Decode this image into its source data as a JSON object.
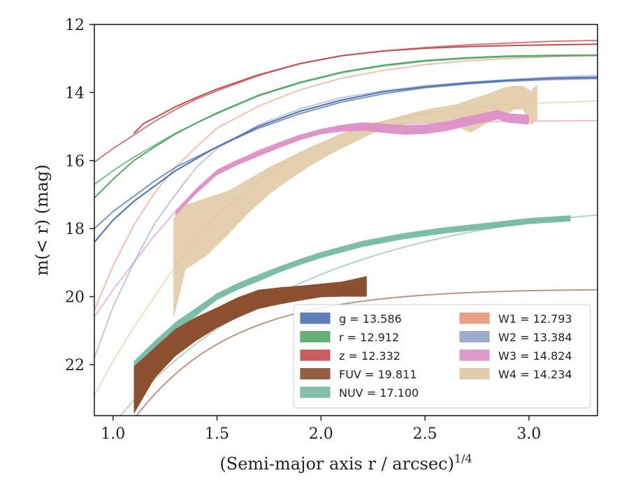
{
  "chart_data": {
    "type": "line",
    "xlabel": "(Semi-major axis r / arcsec)",
    "xlabel_sup": "1/4",
    "ylabel": "m(< r) (mag)",
    "xlim": [
      0.91,
      3.33
    ],
    "ylim": [
      23.5,
      12.0
    ],
    "y_inverted": true,
    "x_ticks": [
      "1.0",
      "1.5",
      "2.0",
      "2.5",
      "3.0"
    ],
    "x_tick_values": [
      1.0,
      1.5,
      2.0,
      2.5,
      3.0
    ],
    "y_ticks": [
      "12",
      "14",
      "16",
      "18",
      "20",
      "22"
    ],
    "y_tick_values": [
      12,
      14,
      16,
      18,
      20,
      22
    ],
    "grid": false,
    "legend_position": "lower-right",
    "legend": [
      {
        "text": "g = 13.586",
        "color": "#4c72b0"
      },
      {
        "text": "r = 12.912",
        "color": "#55a868"
      },
      {
        "text": "z = 12.332",
        "color": "#c44e52"
      },
      {
        "text": "FUV = 19.811",
        "color": "#8c4f2f"
      },
      {
        "text": "NUV = 17.100",
        "color": "#76b8a1"
      },
      {
        "text": "W1 = 12.793",
        "color": "#e8967a"
      },
      {
        "text": "W2 = 13.384",
        "color": "#93a2c8"
      },
      {
        "text": "W3 = 14.824",
        "color": "#dc8fc6"
      },
      {
        "text": "W4 = 14.234",
        "color": "#dfc8a0"
      }
    ],
    "series": [
      {
        "name": "g",
        "color": "#4c72b0",
        "x": [
          0.91,
          1.0,
          1.1,
          1.2,
          1.3,
          1.4,
          1.5,
          1.7,
          1.9,
          2.1,
          2.3,
          2.5,
          2.7,
          2.9,
          3.1,
          3.33
        ],
        "y": [
          18.0,
          17.5,
          17.05,
          16.6,
          16.2,
          15.9,
          15.6,
          15.05,
          14.62,
          14.28,
          14.04,
          13.86,
          13.75,
          13.67,
          13.62,
          13.59
        ],
        "alt_y": [
          18.4,
          17.75,
          17.2,
          16.75,
          16.3,
          15.95,
          15.6,
          15.0,
          14.55,
          14.22,
          13.98,
          13.83,
          13.72,
          13.64,
          13.58,
          13.55
        ]
      },
      {
        "name": "r",
        "color": "#55a868",
        "x": [
          0.91,
          1.0,
          1.1,
          1.2,
          1.3,
          1.4,
          1.5,
          1.7,
          1.9,
          2.1,
          2.3,
          2.5,
          2.7,
          2.9,
          3.1,
          3.33
        ],
        "y": [
          16.7,
          16.3,
          15.9,
          15.55,
          15.2,
          14.9,
          14.62,
          14.1,
          13.72,
          13.42,
          13.22,
          13.08,
          13.0,
          12.95,
          12.93,
          12.91
        ],
        "alt_y": [
          17.1,
          16.55,
          16.0,
          15.6,
          15.22,
          14.9,
          14.6,
          14.08,
          13.7,
          13.4,
          13.2,
          13.06,
          12.98,
          12.93,
          12.91,
          12.9
        ]
      },
      {
        "name": "z",
        "color": "#c44e52",
        "x": [
          0.91,
          1.0,
          1.1,
          1.2,
          1.3,
          1.4,
          1.5,
          1.7,
          1.9,
          2.1,
          2.3,
          2.5,
          2.7,
          2.9,
          3.1,
          3.33
        ],
        "y": [
          16.05,
          15.65,
          15.25,
          14.85,
          14.5,
          14.2,
          13.95,
          13.5,
          13.15,
          12.92,
          12.78,
          12.68,
          12.6,
          12.55,
          12.5,
          12.47
        ],
        "alt_x": [
          1.1,
          1.15,
          1.2,
          1.3,
          1.4,
          1.5,
          1.7,
          1.9,
          2.1,
          2.3,
          2.5,
          2.7,
          2.9,
          3.1,
          3.33
        ],
        "alt_y": [
          15.2,
          14.9,
          14.75,
          14.42,
          14.15,
          13.9,
          13.48,
          13.15,
          12.92,
          12.78,
          12.7,
          12.65,
          12.62,
          12.6,
          12.58
        ]
      },
      {
        "name": "FUV",
        "color": "#8c4f2f",
        "x": [
          1.1,
          1.2,
          1.3,
          1.4,
          1.5,
          1.6,
          1.7,
          1.8,
          1.9,
          2.0,
          2.1,
          2.22
        ],
        "y": [
          22.75,
          21.95,
          21.35,
          20.95,
          20.62,
          20.32,
          20.08,
          19.98,
          19.9,
          19.82,
          19.78,
          19.7
        ],
        "band": [
          0.7,
          0.45,
          0.4,
          0.35,
          0.3,
          0.3,
          0.28,
          0.25,
          0.22,
          0.2,
          0.22,
          0.3
        ]
      },
      {
        "name": "NUV",
        "color": "#76b8a1",
        "x": [
          1.1,
          1.2,
          1.3,
          1.4,
          1.5,
          1.6,
          1.7,
          1.8,
          1.9,
          2.0,
          2.2,
          2.4,
          2.6,
          2.8,
          3.0,
          3.2
        ],
        "y": [
          22.25,
          21.5,
          20.9,
          20.45,
          20.0,
          19.7,
          19.45,
          19.2,
          18.98,
          18.78,
          18.45,
          18.22,
          18.05,
          17.92,
          17.78,
          17.7
        ],
        "band": [
          0.35,
          0.2,
          0.15,
          0.12,
          0.1,
          0.1,
          0.1,
          0.09,
          0.09,
          0.09,
          0.09,
          0.09,
          0.09,
          0.09,
          0.09,
          0.09
        ]
      },
      {
        "name": "W1",
        "color": "#e8967a",
        "x": [
          0.91,
          1.0,
          1.1,
          1.2,
          1.3,
          1.4,
          1.5,
          1.7,
          1.9,
          2.1,
          2.3,
          2.5,
          2.7,
          2.9,
          3.1,
          3.33
        ],
        "y": [
          20.4,
          19.1,
          17.9,
          16.95,
          16.2,
          15.6,
          15.05,
          14.4,
          13.92,
          13.58,
          13.35,
          13.18,
          13.07,
          13.0,
          12.95,
          12.92
        ]
      },
      {
        "name": "W2",
        "color": "#93a2c8",
        "x": [
          0.91,
          1.0,
          1.1,
          1.2,
          1.3,
          1.4,
          1.5,
          1.7,
          1.9,
          2.1,
          2.3,
          2.5,
          2.7,
          2.9,
          3.1,
          3.33
        ],
        "y": [
          21.8,
          20.3,
          19.0,
          17.85,
          17.0,
          16.2,
          15.65,
          14.95,
          14.48,
          14.15,
          13.95,
          13.8,
          13.7,
          13.62,
          13.55,
          13.5
        ]
      },
      {
        "name": "W3",
        "color": "#dc8fc6",
        "x": [
          0.91,
          1.0,
          1.1,
          1.2,
          1.3,
          1.4,
          1.5,
          1.7,
          1.9,
          2.1,
          2.3,
          2.5,
          2.7,
          2.9,
          3.1,
          3.33
        ],
        "y": [
          20.6,
          19.8,
          19.0,
          18.2,
          17.5,
          16.9,
          16.35,
          15.7,
          15.25,
          15.05,
          14.95,
          14.9,
          14.87,
          14.85,
          14.84,
          14.83
        ],
        "band_x": [
          1.3,
          1.4,
          1.5,
          1.6,
          1.7,
          1.8,
          1.9,
          2.0,
          2.1,
          2.2,
          2.3,
          2.4,
          2.5,
          2.6,
          2.7,
          2.8,
          2.85,
          2.9,
          3.0
        ],
        "band_y": [
          17.55,
          16.9,
          16.35,
          16.05,
          15.8,
          15.55,
          15.32,
          15.15,
          15.05,
          15.0,
          15.05,
          15.1,
          15.08,
          15.0,
          14.85,
          14.72,
          14.65,
          14.75,
          14.8
        ],
        "band": [
          0.08,
          0.08,
          0.08,
          0.08,
          0.08,
          0.08,
          0.08,
          0.08,
          0.1,
          0.12,
          0.14,
          0.14,
          0.14,
          0.14,
          0.14,
          0.14,
          0.14,
          0.14,
          0.14
        ]
      },
      {
        "name": "W4",
        "color": "#dfc8a0",
        "x": [
          0.91,
          1.0,
          1.1,
          1.2,
          1.3,
          1.4,
          1.5,
          1.7,
          1.9,
          2.1,
          2.3,
          2.5,
          2.7,
          2.9,
          3.1,
          3.33
        ],
        "y": [
          22.9,
          21.9,
          20.9,
          20.0,
          19.1,
          18.3,
          17.6,
          16.6,
          15.8,
          15.2,
          14.85,
          14.6,
          14.45,
          14.35,
          14.3,
          14.25
        ],
        "band_x": [
          1.29,
          1.35,
          1.45,
          1.55,
          1.65,
          1.75,
          1.85,
          1.95,
          2.05,
          2.15,
          2.25,
          2.35,
          2.45,
          2.55,
          2.65,
          2.72,
          2.8,
          2.88,
          2.93,
          2.97,
          3.01,
          3.04
        ],
        "band_lo": [
          20.65,
          19.2,
          18.8,
          18.2,
          17.55,
          17.0,
          16.55,
          16.15,
          15.8,
          15.5,
          15.2,
          15.0,
          14.9,
          14.88,
          15.0,
          15.18,
          14.9,
          14.7,
          14.5,
          14.5,
          14.95,
          14.8
        ],
        "band_hi": [
          17.7,
          17.3,
          17.1,
          16.9,
          16.55,
          16.2,
          15.9,
          15.6,
          15.35,
          15.1,
          14.9,
          14.75,
          14.58,
          14.45,
          14.35,
          14.2,
          14.05,
          13.85,
          13.8,
          13.8,
          13.95,
          13.75
        ]
      }
    ]
  }
}
